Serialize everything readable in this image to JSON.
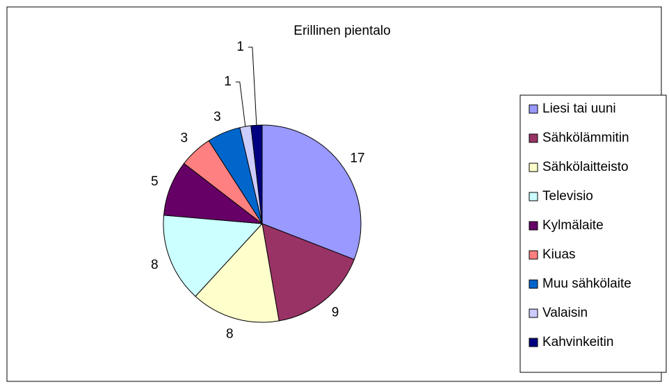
{
  "chart_data": {
    "type": "pie",
    "title": "Erillinen pientalo",
    "categories": [
      "Liesi tai uuni",
      "Sähkölämmitin",
      "Sähkölaitteisto",
      "Televisio",
      "Kylmälaite",
      "Kiuas",
      "Muu sähkölaite",
      "Valaisin",
      "Kahvinkeitin"
    ],
    "values": [
      17,
      9,
      8,
      8,
      5,
      3,
      3,
      1,
      1
    ],
    "colors": [
      "#9999ff",
      "#993366",
      "#ffffcc",
      "#ccffff",
      "#660066",
      "#ff8080",
      "#0066cc",
      "#ccccff",
      "#000080"
    ]
  }
}
